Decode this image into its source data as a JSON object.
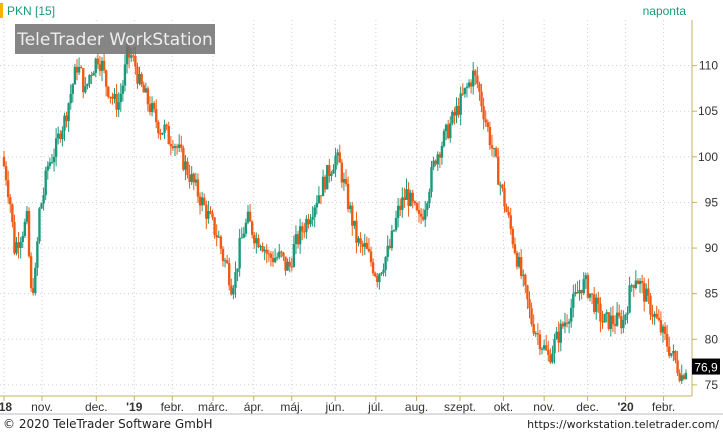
{
  "header": {
    "symbol": "PKN [15]",
    "interval": "naponta",
    "watermark": "TeleTrader WorkStation"
  },
  "footer": {
    "copyright": "© 2020  TeleTrader Software GmbH",
    "url": "https://workstation.teletrader.com/"
  },
  "colors": {
    "up": "#1a9a7a",
    "down": "#f05a14",
    "grid": "#cfcfcf",
    "axis": "#c8b060",
    "last_price_bg": "#000000"
  },
  "chart_data": {
    "type": "candlestick",
    "title": "PKN [15]",
    "interval": "naponta",
    "ylim": [
      74,
      115
    ],
    "yticks": [
      75,
      80,
      85,
      90,
      95,
      100,
      105,
      110
    ],
    "ytick_labels": [
      "75",
      "80",
      "85",
      "90",
      "95",
      "100",
      "105",
      "110"
    ],
    "last_price": 76.9,
    "last_price_label": "76,9",
    "xticks": [
      "'18",
      "nov.",
      "dec.",
      "'19",
      "febr.",
      "márc.",
      "ápr.",
      "máj.",
      "jún.",
      "júl.",
      "aug.",
      "szept.",
      "okt.",
      "nov.",
      "dec.",
      "'20",
      "febr."
    ],
    "xtick_index": [
      0,
      14,
      34,
      48,
      62,
      77,
      92,
      106,
      122,
      137,
      152,
      168,
      184,
      199,
      215,
      229,
      243
    ],
    "x_range": [
      0,
      252
    ],
    "grid": true,
    "series": [
      {
        "values": [
          100,
          98,
          95,
          90,
          91,
          92,
          93,
          85,
          87,
          94,
          96,
          99,
          100,
          101,
          103,
          104,
          106,
          108,
          110,
          109,
          107,
          109,
          110,
          111,
          110,
          108,
          107,
          106,
          106,
          108,
          111,
          111,
          110,
          108,
          107,
          106,
          105,
          104,
          103,
          103,
          102,
          102,
          101,
          100,
          99,
          98,
          97,
          96,
          95,
          94,
          93,
          92,
          91,
          89,
          88,
          86,
          87,
          90,
          92,
          93,
          92,
          91,
          91,
          90,
          89,
          89,
          89,
          89,
          88,
          88,
          90,
          91,
          92,
          93,
          94,
          95,
          96,
          97,
          98,
          99,
          100,
          99,
          97,
          95,
          93,
          91,
          90,
          90,
          89,
          88,
          87,
          88,
          89,
          90,
          92,
          94,
          95,
          96,
          95,
          94,
          93,
          94,
          96,
          98,
          100,
          101,
          102,
          103,
          104,
          105,
          106,
          107,
          108,
          109,
          108,
          106,
          104,
          102,
          100,
          98,
          96,
          94,
          92,
          90,
          88,
          86,
          84,
          82,
          81,
          80,
          79,
          78,
          79,
          80,
          81,
          82,
          83,
          84,
          85,
          86,
          86,
          85,
          84,
          83,
          82,
          82,
          82,
          82,
          82,
          82,
          84,
          86,
          87,
          86,
          85,
          84,
          83,
          82,
          81,
          80,
          79,
          78,
          77,
          76,
          77
        ]
      }
    ]
  }
}
